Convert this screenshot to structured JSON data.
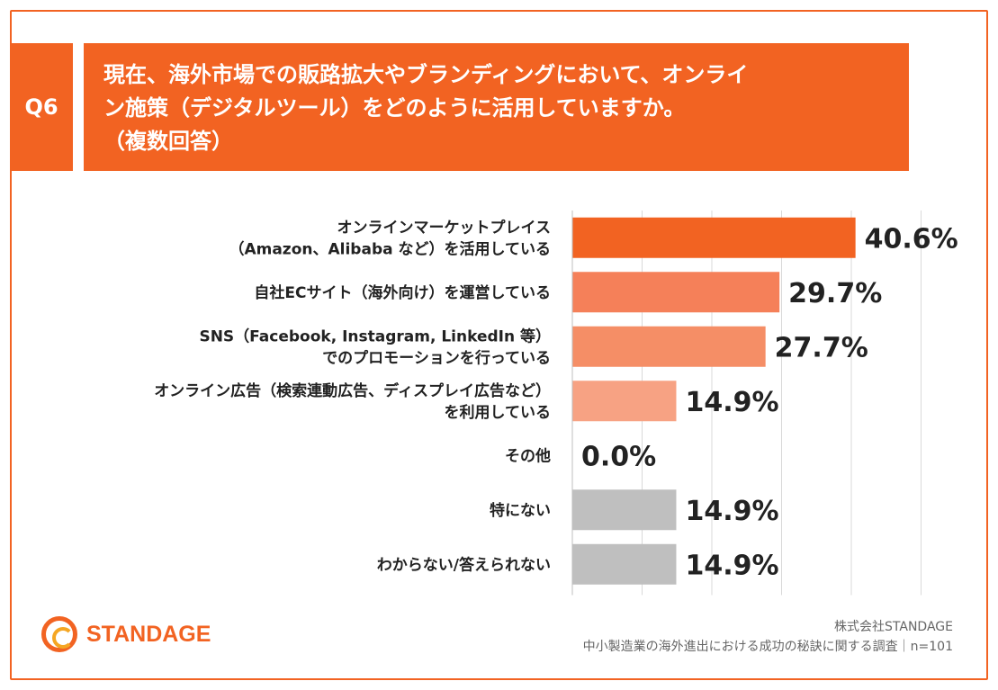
{
  "question": {
    "number": "Q6",
    "title_lines": [
      "現在、海外市場での販路拡大やブランディングにおいて、オンライ",
      "ン施策（デジタルツール）をどのように活用していますか。",
      "（複数回答）"
    ]
  },
  "chart_data": {
    "type": "bar",
    "orientation": "horizontal",
    "title": "現在、海外市場での販路拡大やブランディングにおいて、オンライン施策（デジタルツール）をどのように活用していますか。（複数回答）",
    "categories": [
      [
        "オンラインマーケットプレイス",
        "（Amazon、Alibaba など）を活用している"
      ],
      [
        "自社ECサイト（海外向け）を運営している"
      ],
      [
        "SNS（Facebook, Instagram, LinkedIn 等）",
        "でのプロモーションを行っている"
      ],
      [
        "オンライン広告（検索連動広告、ディスプレイ広告など）",
        "を利用している"
      ],
      [
        "その他"
      ],
      [
        "特にない"
      ],
      [
        "わからない/答えられない"
      ]
    ],
    "values": [
      40.6,
      29.7,
      27.7,
      14.9,
      0.0,
      14.9,
      14.9
    ],
    "value_labels": [
      "40.6%",
      "29.7%",
      "27.7%",
      "14.9%",
      "0.0%",
      "14.9%",
      "14.9%"
    ],
    "bar_colors": [
      "#f26322",
      "#f58059",
      "#f58e66",
      "#f7a283",
      "#f7a283",
      "#bfbfbf",
      "#bfbfbf"
    ],
    "xlim": [
      0,
      50
    ],
    "grid": true,
    "unit": "%"
  },
  "logo": {
    "text": "STANDAGE",
    "color": "#f26322"
  },
  "footer": {
    "company": "株式会社STANDAGE",
    "survey": "中小製造業の海外進出における成功の秘訣に関する調査｜n=101"
  }
}
